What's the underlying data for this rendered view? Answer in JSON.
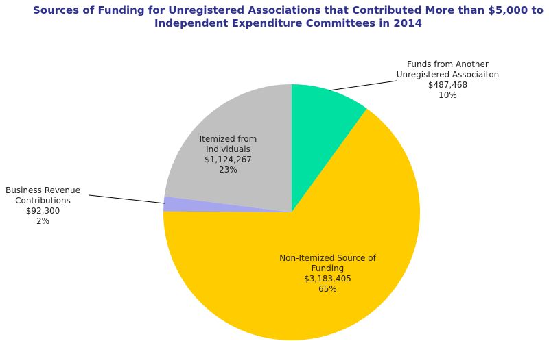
{
  "chart_data": {
    "type": "pie",
    "title": "Sources of Funding for Unregistered Associations that Contributed More than $5,000 to Independent Expenditure Committees in 2014",
    "categories": [
      "Funds from Another Unregistered Associaiton",
      "Non-Itemized Source of Funding",
      "Business Revenue Contributions",
      "Itemized from Individuals"
    ],
    "values": [
      487468,
      3183405,
      92300,
      1124267
    ],
    "value_labels": [
      "$487,468",
      "$3,183,405",
      "$92,300",
      "$1,124,267"
    ],
    "share_labels": [
      "10%",
      "65%",
      "2%",
      "23%"
    ],
    "colors": [
      "#00e0a0",
      "#ffcc00",
      "#a6a6ee",
      "#c0c0c0"
    ]
  }
}
